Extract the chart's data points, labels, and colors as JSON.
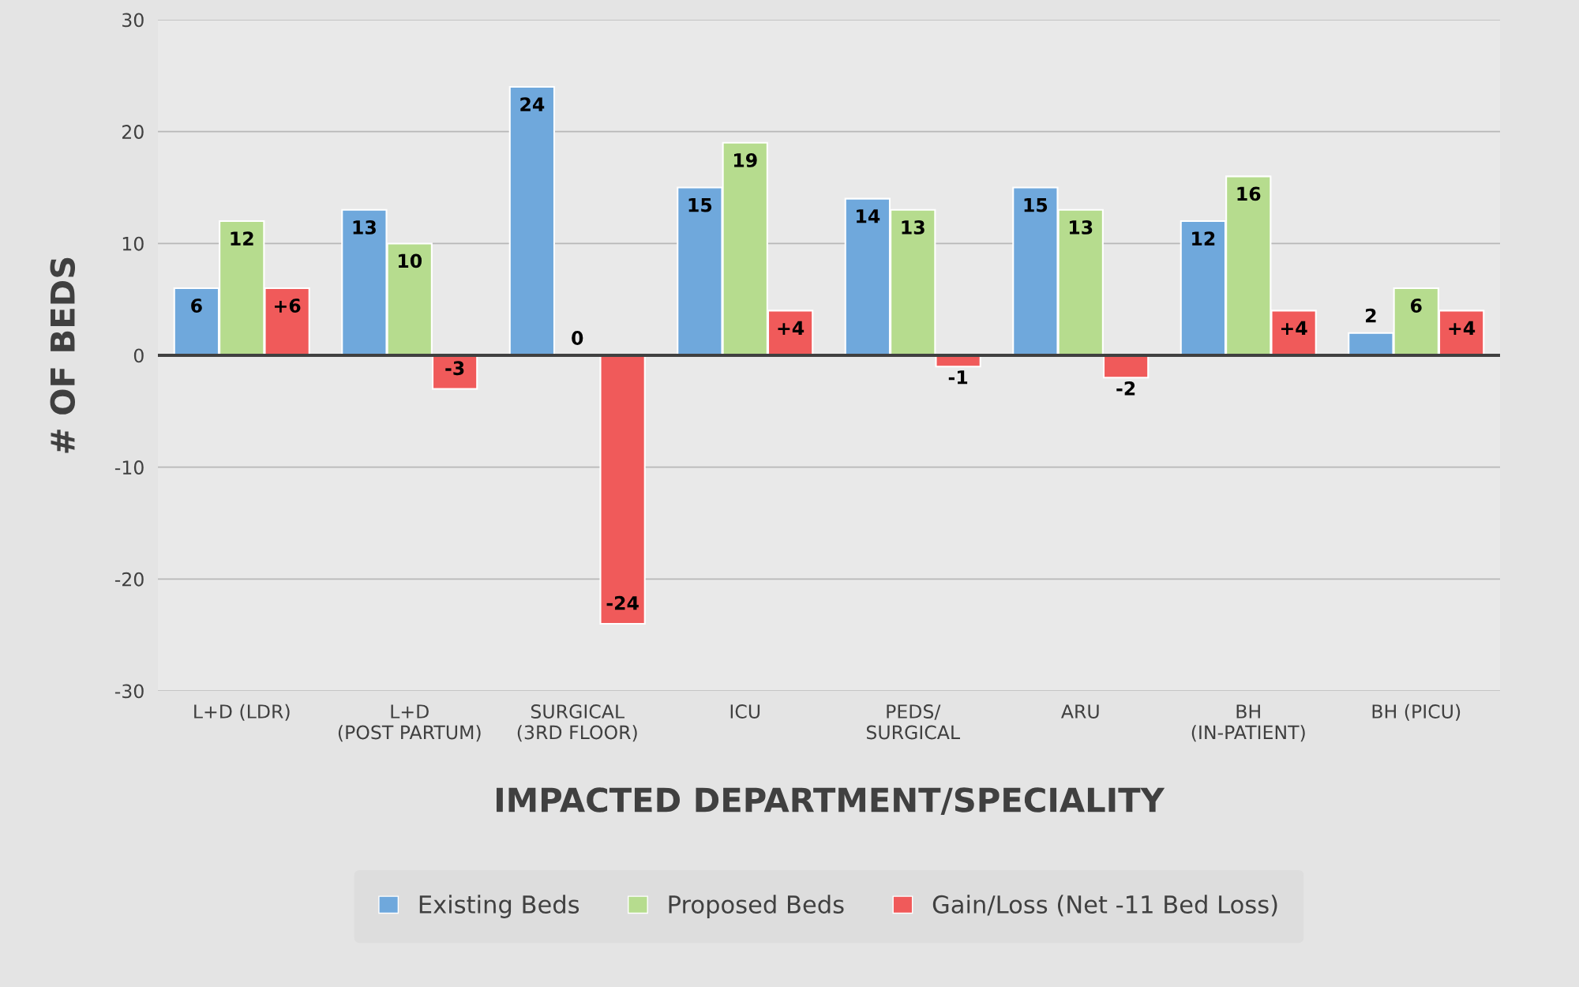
{
  "chart_data": {
    "type": "bar",
    "xlabel": "IMPACTED DEPARTMENT/SPECIALITY",
    "ylabel": "# OF BEDS",
    "categories": [
      "L+D (LDR)",
      "L+D\n(POST PARTUM)",
      "SURGICAL\n(3RD FLOOR)",
      "ICU",
      "PEDS/\nSURGICAL",
      "ARU",
      "BH\n(IN-PATIENT)",
      "BH (PICU)"
    ],
    "series": [
      {
        "name": "Existing Beds",
        "color": "#6fa8dc",
        "values": [
          6,
          13,
          24,
          15,
          14,
          15,
          12,
          2
        ],
        "value_labels": [
          "6",
          "13",
          "24",
          "15",
          "14",
          "15",
          "12",
          "2"
        ]
      },
      {
        "name": "Proposed Beds",
        "color": "#b6dc8e",
        "values": [
          12,
          10,
          0,
          19,
          13,
          13,
          16,
          6
        ],
        "value_labels": [
          "12",
          "10",
          "0",
          "19",
          "13",
          "13",
          "16",
          "6"
        ]
      },
      {
        "name": "Gain/Loss (Net -11 Bed Loss)",
        "color": "#f05a5a",
        "values": [
          6,
          -3,
          -24,
          4,
          -1,
          -2,
          4,
          4
        ],
        "value_labels": [
          "+6",
          "-3",
          "-24",
          "+4",
          "-1",
          "-2",
          "+4",
          "+4"
        ]
      }
    ],
    "ylim": [
      -30,
      30
    ],
    "yticks": [
      -30,
      -20,
      -10,
      0,
      10,
      20,
      30
    ],
    "grid": "y",
    "legend": "bottom"
  }
}
